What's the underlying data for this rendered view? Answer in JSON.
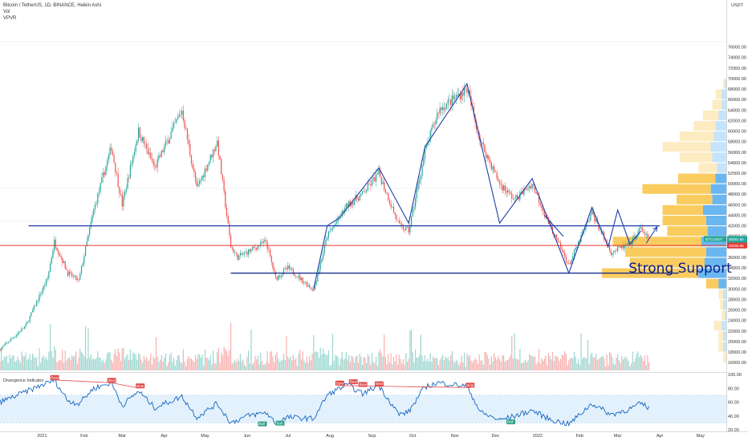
{
  "header": {
    "title": "Bitcoin / TetherUS, 1D, BINANCE, Heikin Ashi",
    "vol_label": "Vol",
    "vpvr_label": "VPVR"
  },
  "chart_data": {
    "type": "candlestick",
    "symbol": "BTCUSDT",
    "price_axis": {
      "unit": "USDT",
      "ticks": [
        16000,
        18000,
        20000,
        22000,
        24000,
        26000,
        28000,
        30000,
        32000,
        34000,
        36000,
        38000,
        40000,
        42000,
        44000,
        46000,
        48000,
        50000,
        52000,
        54000,
        56000,
        58000,
        60000,
        62000,
        64000,
        66000,
        68000,
        70000,
        72000,
        74000,
        76000
      ],
      "ylim": [
        14500,
        77000
      ]
    },
    "time_axis": {
      "labels": [
        "2021",
        "Feb",
        "Mar",
        "Apr",
        "May",
        "Jun",
        "Jul",
        "Aug",
        "Sep",
        "Oct",
        "Nov",
        "Dec",
        "2022",
        "Feb",
        "Mar",
        "Apr",
        "May"
      ],
      "label_dates": [
        "2021-01-01",
        "2021-02-01",
        "2021-03-01",
        "2021-04-01",
        "2021-05-01",
        "2021-06-01",
        "2021-07-01",
        "2021-08-01",
        "2021-09-01",
        "2021-10-01",
        "2021-11-01",
        "2021-12-01",
        "2022-01-01",
        "2022-02-01",
        "2022-03-01",
        "2022-04-01",
        "2022-05-01"
      ]
    },
    "price_path": [
      [
        "2020-12-01",
        18500
      ],
      [
        "2020-12-20",
        23000
      ],
      [
        "2021-01-05",
        32000
      ],
      [
        "2021-01-10",
        39000
      ],
      [
        "2021-01-20",
        33000
      ],
      [
        "2021-01-28",
        31500
      ],
      [
        "2021-02-08",
        45000
      ],
      [
        "2021-02-21",
        57000
      ],
      [
        "2021-03-01",
        46000
      ],
      [
        "2021-03-13",
        60000
      ],
      [
        "2021-03-25",
        53000
      ],
      [
        "2021-04-14",
        64000
      ],
      [
        "2021-04-25",
        49000
      ],
      [
        "2021-05-10",
        58000
      ],
      [
        "2021-05-20",
        38000
      ],
      [
        "2021-05-25",
        36000
      ],
      [
        "2021-06-15",
        39000
      ],
      [
        "2021-06-22",
        32000
      ],
      [
        "2021-07-01",
        34000
      ],
      [
        "2021-07-20",
        29800
      ],
      [
        "2021-07-30",
        40000
      ],
      [
        "2021-08-14",
        46000
      ],
      [
        "2021-08-25",
        48000
      ],
      [
        "2021-09-06",
        52000
      ],
      [
        "2021-09-21",
        42000
      ],
      [
        "2021-09-28",
        41000
      ],
      [
        "2021-10-10",
        56000
      ],
      [
        "2021-10-20",
        64000
      ],
      [
        "2021-11-10",
        68000
      ],
      [
        "2021-11-20",
        58000
      ],
      [
        "2021-12-04",
        50000
      ],
      [
        "2021-12-15",
        47000
      ],
      [
        "2021-12-28",
        50000
      ],
      [
        "2022-01-10",
        42000
      ],
      [
        "2022-01-24",
        34500
      ],
      [
        "2022-02-10",
        44500
      ],
      [
        "2022-02-24",
        37000
      ],
      [
        "2022-03-10",
        38500
      ],
      [
        "2022-03-18",
        41500
      ],
      [
        "2022-03-24",
        39281
      ]
    ],
    "last_price": {
      "value": 39281.8,
      "label": "BTCUSDT",
      "price_text": "39281.80",
      "countdown_text": "23:17:22"
    },
    "red_line": {
      "value": 38256.85,
      "price_text": "38256.85"
    },
    "horizontal_levels": [
      {
        "price": 42000,
        "from": "2020-12-22",
        "to": "2022-04-01",
        "color": "#1f3fa8"
      },
      {
        "price": 33000,
        "from": "2021-05-20",
        "to": "2022-04-15",
        "color": "#0b1f8a"
      }
    ],
    "pattern_lines": [
      [
        [
          "2021-07-20",
          30000
        ],
        [
          "2021-07-30",
          42000
        ],
        [
          "2021-08-08",
          43500
        ],
        [
          "2021-09-06",
          53000
        ],
        [
          "2021-09-28",
          42500
        ],
        [
          "2021-10-10",
          57000
        ],
        [
          "2021-11-10",
          69000
        ],
        [
          "2021-12-04",
          42500
        ],
        [
          "2021-12-28",
          51000
        ],
        [
          "2022-01-24",
          33000
        ],
        [
          "2022-02-10",
          45500
        ],
        [
          "2022-02-22",
          38000
        ],
        [
          "2022-03-01",
          45000
        ],
        [
          "2022-03-10",
          38500
        ],
        [
          "2022-03-18",
          41000
        ]
      ],
      [
        [
          "2022-01-06",
          44000
        ],
        [
          "2022-01-20",
          40000
        ]
      ]
    ],
    "arrow": {
      "from": [
        "2022-03-22",
        38700
      ],
      "to": [
        "2022-03-30",
        41800
      ]
    },
    "annotation": {
      "text": "Strong Support",
      "date": "2022-03-09",
      "price": 34000
    },
    "vpvr": [
      {
        "price": 17000,
        "up": 2,
        "down": 0
      },
      {
        "price": 19000,
        "up": 3,
        "down": 2
      },
      {
        "price": 21000,
        "up": 3,
        "down": 2
      },
      {
        "price": 23000,
        "up": 5,
        "down": 3
      },
      {
        "price": 25000,
        "up": 2,
        "down": 1
      },
      {
        "price": 27000,
        "up": 2,
        "down": 2
      },
      {
        "price": 29000,
        "up": 3,
        "down": 2
      },
      {
        "price": 31000,
        "up": 8,
        "down": 5
      },
      {
        "price": 33000,
        "up": 62,
        "down": 18
      },
      {
        "price": 35000,
        "up": 48,
        "down": 14
      },
      {
        "price": 37000,
        "up": 52,
        "down": 13
      },
      {
        "price": 39000,
        "up": 57,
        "down": 16
      },
      {
        "price": 41000,
        "up": 26,
        "down": 12
      },
      {
        "price": 43000,
        "up": 28,
        "down": 13
      },
      {
        "price": 45000,
        "up": 26,
        "down": 15
      },
      {
        "price": 47000,
        "up": 23,
        "down": 9
      },
      {
        "price": 49000,
        "up": 44,
        "down": 10
      },
      {
        "price": 51000,
        "up": 24,
        "down": 7
      },
      {
        "price": 53000,
        "up": 12,
        "down": 6
      },
      {
        "price": 55000,
        "up": 21,
        "down": 9
      },
      {
        "price": 57000,
        "up": 31,
        "down": 10
      },
      {
        "price": 59000,
        "up": 22,
        "down": 8
      },
      {
        "price": 61000,
        "up": 14,
        "down": 7
      },
      {
        "price": 63000,
        "up": 10,
        "down": 5
      },
      {
        "price": 65000,
        "up": 6,
        "down": 3
      },
      {
        "price": 67000,
        "up": 4,
        "down": 3
      },
      {
        "price": 69000,
        "up": 1,
        "down": 1
      }
    ],
    "oscillator": {
      "name": "Divergence Indicator",
      "ticks": [
        100,
        80,
        60,
        40,
        20
      ],
      "tick_labels": [
        "100.00",
        "80.00",
        "60.00",
        "40.00",
        "20.00"
      ],
      "band": [
        30,
        70
      ],
      "ylim": [
        20,
        100
      ],
      "path": [
        [
          "2020-12-01",
          60
        ],
        [
          "2020-12-20",
          75
        ],
        [
          "2021-01-05",
          88
        ],
        [
          "2021-01-10",
          92
        ],
        [
          "2021-01-20",
          62
        ],
        [
          "2021-01-28",
          58
        ],
        [
          "2021-02-08",
          80
        ],
        [
          "2021-02-21",
          88
        ],
        [
          "2021-03-01",
          55
        ],
        [
          "2021-03-13",
          76
        ],
        [
          "2021-03-25",
          52
        ],
        [
          "2021-04-14",
          68
        ],
        [
          "2021-04-25",
          38
        ],
        [
          "2021-05-10",
          58
        ],
        [
          "2021-05-20",
          30
        ],
        [
          "2021-06-01",
          40
        ],
        [
          "2021-06-15",
          45
        ],
        [
          "2021-06-22",
          30
        ],
        [
          "2021-07-01",
          38
        ],
        [
          "2021-07-20",
          36
        ],
        [
          "2021-07-30",
          70
        ],
        [
          "2021-08-08",
          80
        ],
        [
          "2021-08-14",
          85
        ],
        [
          "2021-08-25",
          72
        ],
        [
          "2021-09-06",
          84
        ],
        [
          "2021-09-21",
          42
        ],
        [
          "2021-09-28",
          46
        ],
        [
          "2021-10-10",
          82
        ],
        [
          "2021-10-20",
          88
        ],
        [
          "2021-11-10",
          83
        ],
        [
          "2021-11-20",
          45
        ],
        [
          "2021-12-04",
          34
        ],
        [
          "2021-12-15",
          40
        ],
        [
          "2021-12-28",
          48
        ],
        [
          "2022-01-10",
          35
        ],
        [
          "2022-01-24",
          28
        ],
        [
          "2022-02-10",
          58
        ],
        [
          "2022-02-24",
          42
        ],
        [
          "2022-03-10",
          50
        ],
        [
          "2022-03-18",
          58
        ],
        [
          "2022-03-24",
          52
        ]
      ],
      "bear_badges": [
        {
          "date": "2021-01-10",
          "value": 92,
          "text": "Bear"
        },
        {
          "date": "2021-02-21",
          "value": 88,
          "text": "Bear"
        },
        {
          "date": "2021-03-14",
          "value": 80,
          "text": "Bear"
        },
        {
          "date": "2021-08-08",
          "value": 84,
          "text": "Bear"
        },
        {
          "date": "2021-08-18",
          "value": 86,
          "text": "Bear"
        },
        {
          "date": "2021-08-25",
          "value": 82,
          "text": "Bear"
        },
        {
          "date": "2021-09-06",
          "value": 83,
          "text": "Bear"
        },
        {
          "date": "2021-11-12",
          "value": 81,
          "text": "Bear"
        }
      ],
      "bull_badges": [
        {
          "date": "2021-06-12",
          "value": 32,
          "text": "Bull"
        },
        {
          "date": "2021-06-25",
          "value": 33,
          "text": "Bull"
        },
        {
          "date": "2021-12-12",
          "value": 35,
          "text": "Bull"
        }
      ]
    }
  },
  "colors": {
    "up": "#26a69a",
    "down": "#ef5350",
    "vpvr_up": "#f9c74f",
    "vpvr_down": "#5aaef0",
    "line_blue": "#1f3fa8",
    "support_navy": "#0b1f8a",
    "red_line": "#e53935",
    "osc_line": "#1565c0",
    "badge_green": "#2e9e86",
    "badge_red": "#e04848"
  }
}
